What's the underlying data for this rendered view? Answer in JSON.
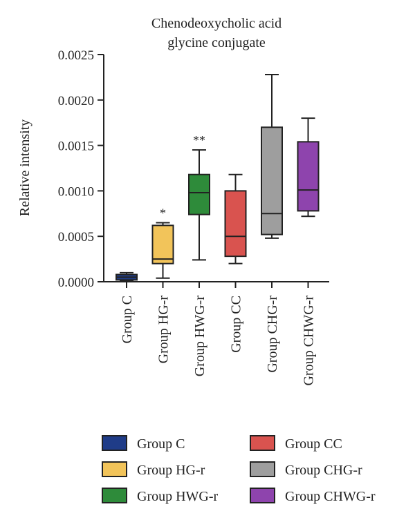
{
  "chart_data": {
    "type": "box",
    "title": [
      "Chenodeoxycholic acid",
      "glycine conjugate"
    ],
    "ylabel": "Relative intensity",
    "xlabel": "",
    "ylim": [
      0,
      0.0025
    ],
    "yticks": [
      "0.0000",
      "0.0005",
      "0.0010",
      "0.0015",
      "0.0020",
      "0.0025"
    ],
    "ytick_values": [
      0,
      0.0005,
      0.001,
      0.0015,
      0.002,
      0.0025
    ],
    "grid": false,
    "legend_position": "bottom",
    "categories": [
      "Group C",
      "Group HG-r",
      "Group HWG-r",
      "Group CC",
      "Group CHG-r",
      "Group CHWG-r"
    ],
    "colors": [
      "#1f3c88",
      "#f2c45a",
      "#2e8b3a",
      "#d9534f",
      "#9e9e9e",
      "#8e44ad"
    ],
    "boxes": [
      {
        "min": 1e-05,
        "q1": 2e-05,
        "median": 5e-05,
        "q3": 8e-05,
        "max": 0.0001,
        "annotation": ""
      },
      {
        "min": 4e-05,
        "q1": 0.0002,
        "median": 0.00025,
        "q3": 0.00062,
        "max": 0.00065,
        "annotation": "*"
      },
      {
        "min": 0.00024,
        "q1": 0.00074,
        "median": 0.00098,
        "q3": 0.00118,
        "max": 0.00145,
        "annotation": "**"
      },
      {
        "min": 0.0002,
        "q1": 0.00028,
        "median": 0.0005,
        "q3": 0.001,
        "max": 0.00118,
        "annotation": ""
      },
      {
        "min": 0.00048,
        "q1": 0.00052,
        "median": 0.00075,
        "q3": 0.0017,
        "max": 0.00228,
        "annotation": ""
      },
      {
        "min": 0.00072,
        "q1": 0.00078,
        "median": 0.00101,
        "q3": 0.00154,
        "max": 0.0018,
        "annotation": ""
      }
    ],
    "legend": [
      "Group C",
      "Group HG-r",
      "Group HWG-r",
      "Group CC",
      "Group CHG-r",
      "Group CHWG-r"
    ]
  }
}
